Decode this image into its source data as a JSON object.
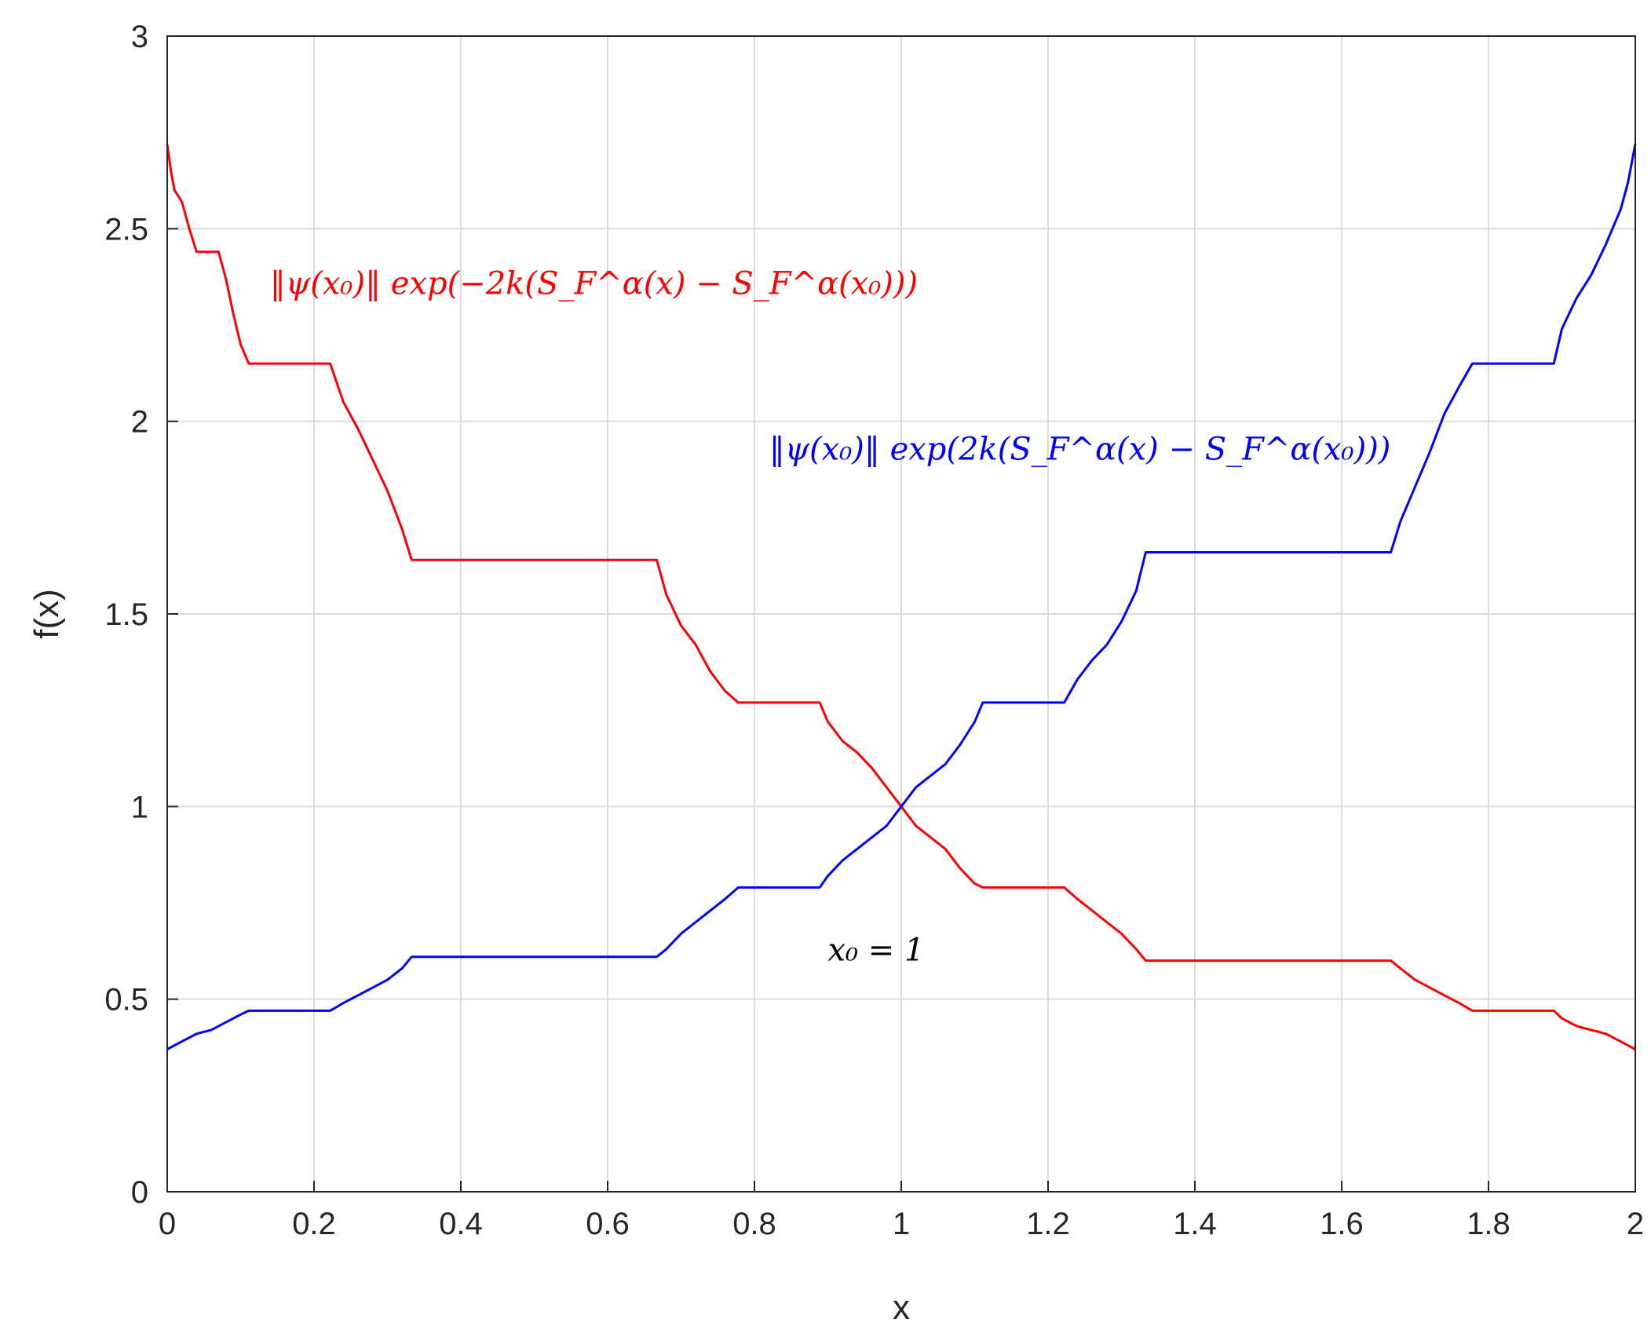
{
  "chart_data": {
    "type": "line",
    "xlabel": "x",
    "ylabel": "f(x)",
    "xlim": [
      0,
      2
    ],
    "ylim": [
      0,
      3
    ],
    "xticks": [
      0,
      0.2,
      0.4,
      0.6,
      0.8,
      1,
      1.2,
      1.4,
      1.6,
      1.8,
      2
    ],
    "xtick_labels": [
      "0",
      "0.2",
      "0.4",
      "0.6",
      "0.8",
      "1",
      "1.2",
      "1.4",
      "1.6",
      "1.8",
      "2"
    ],
    "yticks": [
      0,
      0.5,
      1,
      1.5,
      2,
      2.5,
      3
    ],
    "ytick_labels": [
      "0",
      "0.5",
      "1",
      "1.5",
      "2",
      "2.5",
      "3"
    ],
    "grid": true,
    "series": [
      {
        "color": "#ff0000",
        "x": [
          0,
          0.005,
          0.01,
          0.02,
          0.03,
          0.04,
          0.07,
          0.08,
          0.09,
          0.1,
          0.111,
          0.222,
          0.24,
          0.26,
          0.28,
          0.3,
          0.32,
          0.333,
          0.667,
          0.68,
          0.7,
          0.72,
          0.74,
          0.76,
          0.778,
          0.889,
          0.9,
          0.92,
          0.94,
          0.96,
          0.98,
          1.0,
          1.02,
          1.04,
          1.06,
          1.08,
          1.1,
          1.111,
          1.222,
          1.24,
          1.26,
          1.28,
          1.3,
          1.32,
          1.333,
          1.667,
          1.68,
          1.7,
          1.72,
          1.74,
          1.76,
          1.778,
          1.889,
          1.9,
          1.92,
          1.94,
          1.96,
          1.98,
          2.0
        ],
        "y": [
          2.72,
          2.65,
          2.6,
          2.57,
          2.5,
          2.44,
          2.44,
          2.37,
          2.28,
          2.2,
          2.15,
          2.15,
          2.05,
          1.98,
          1.9,
          1.82,
          1.72,
          1.64,
          1.64,
          1.55,
          1.47,
          1.42,
          1.35,
          1.3,
          1.27,
          1.27,
          1.22,
          1.17,
          1.14,
          1.1,
          1.05,
          1.0,
          0.95,
          0.92,
          0.89,
          0.84,
          0.8,
          0.79,
          0.79,
          0.76,
          0.73,
          0.7,
          0.67,
          0.63,
          0.6,
          0.6,
          0.58,
          0.55,
          0.53,
          0.51,
          0.49,
          0.47,
          0.47,
          0.45,
          0.43,
          0.42,
          0.41,
          0.39,
          0.37
        ]
      },
      {
        "color": "#0000ff",
        "x": [
          0,
          0.02,
          0.04,
          0.06,
          0.08,
          0.1,
          0.111,
          0.222,
          0.24,
          0.26,
          0.28,
          0.3,
          0.32,
          0.333,
          0.667,
          0.68,
          0.7,
          0.72,
          0.74,
          0.76,
          0.778,
          0.889,
          0.9,
          0.92,
          0.94,
          0.96,
          0.98,
          1.0,
          1.02,
          1.04,
          1.06,
          1.08,
          1.1,
          1.111,
          1.222,
          1.24,
          1.26,
          1.28,
          1.3,
          1.32,
          1.333,
          1.667,
          1.68,
          1.7,
          1.72,
          1.74,
          1.76,
          1.778,
          1.889,
          1.9,
          1.92,
          1.94,
          1.96,
          1.98,
          1.99,
          2.0
        ],
        "y": [
          0.37,
          0.39,
          0.41,
          0.42,
          0.44,
          0.46,
          0.47,
          0.47,
          0.49,
          0.51,
          0.53,
          0.55,
          0.58,
          0.61,
          0.61,
          0.63,
          0.67,
          0.7,
          0.73,
          0.76,
          0.79,
          0.79,
          0.82,
          0.86,
          0.89,
          0.92,
          0.95,
          1.0,
          1.05,
          1.08,
          1.11,
          1.16,
          1.22,
          1.27,
          1.27,
          1.33,
          1.38,
          1.42,
          1.48,
          1.56,
          1.66,
          1.66,
          1.74,
          1.83,
          1.92,
          2.02,
          2.09,
          2.15,
          2.15,
          2.24,
          2.32,
          2.38,
          2.46,
          2.55,
          2.62,
          2.72
        ]
      }
    ],
    "annotations": [
      {
        "text": "‖ψ(x₀)‖ exp(−2k(S_F^α(x) − S_F^α(x₀)))",
        "color": "#ff0000",
        "x": 0.14,
        "y": 2.33
      },
      {
        "text": "‖ψ(x₀)‖ exp(2k(S_F^α(x) − S_F^α(x₀)))",
        "color": "#0000ff",
        "x": 0.82,
        "y": 1.9
      },
      {
        "text": "x₀ = 1",
        "color": "#000000",
        "x": 0.9,
        "y": 0.6
      }
    ]
  }
}
